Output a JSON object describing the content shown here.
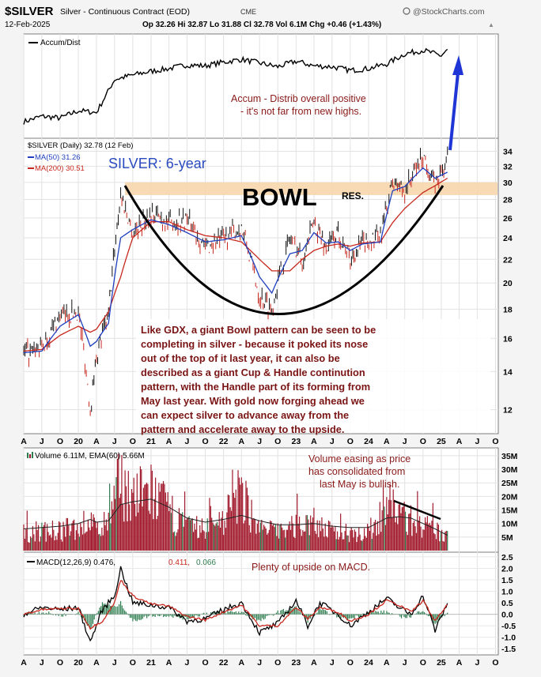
{
  "header": {
    "symbol": "$SILVER",
    "description": "Silver - Continuous Contract (EOD)",
    "exchange": "CME",
    "brand": "@StockCharts.com",
    "date": "12-Feb-2025",
    "quote": "Op 32.26  Hi 32.87  Lo 31.88  Cl 32.78  Vol 6.1M  Chg +0.46 (+1.43%)",
    "quote_arrow": "▲"
  },
  "x_ticks": [
    "A",
    "J",
    "O",
    "20",
    "A",
    "J",
    "O",
    "21",
    "A",
    "J",
    "O",
    "22",
    "A",
    "J",
    "O",
    "23",
    "A",
    "J",
    "O",
    "24",
    "A",
    "J",
    "O",
    "25",
    "A",
    "J",
    "O"
  ],
  "chart_data": [
    {
      "type": "line",
      "panel": "accum-dist",
      "legend": "Accum/Dist",
      "annotation": [
        "Accum - Distrib overall positive",
        "- it's not far from new highs."
      ],
      "x": [
        "2019-04",
        "2019-07",
        "2019-10",
        "2020-01",
        "2020-04",
        "2020-07",
        "2020-10",
        "2021-01",
        "2021-04",
        "2021-07",
        "2021-10",
        "2022-01",
        "2022-04",
        "2022-07",
        "2022-10",
        "2023-01",
        "2023-04",
        "2023-07",
        "2023-10",
        "2024-01",
        "2024-04",
        "2024-07",
        "2024-10",
        "2025-01",
        "2025-02"
      ],
      "values": [
        12,
        18,
        16,
        24,
        22,
        58,
        63,
        67,
        70,
        74,
        73,
        77,
        80,
        76,
        72,
        78,
        73,
        72,
        68,
        70,
        75,
        86,
        90,
        84,
        91
      ],
      "y_unit": "relative (0-100, no scale shown)",
      "line_color": "#000000"
    },
    {
      "type": "line",
      "panel": "price",
      "legend_symbol": "$SILVER (Daily) 32.78 (12 Feb)",
      "legend_ma50": "MA(50) 31.26",
      "legend_ma200": "MA(200) 30.51",
      "title": "SILVER: 6-year",
      "y_axis": "log",
      "yticks": [
        12,
        14,
        16,
        18,
        20,
        22,
        24,
        26,
        28,
        30,
        32,
        34
      ],
      "ylim": [
        11,
        35.5
      ],
      "x": [
        "2019-04",
        "2019-07",
        "2019-10",
        "2020-01",
        "2020-03",
        "2020-04",
        "2020-06",
        "2020-08",
        "2020-10",
        "2021-01",
        "2021-04",
        "2021-07",
        "2021-10",
        "2022-01",
        "2022-04",
        "2022-07",
        "2022-09",
        "2022-12",
        "2023-02",
        "2023-04",
        "2023-06",
        "2023-08",
        "2023-10",
        "2023-12",
        "2024-03",
        "2024-05",
        "2024-07",
        "2024-10",
        "2024-12",
        "2025-02"
      ],
      "series": [
        {
          "name": "$SILVER",
          "color": "#000000",
          "values": [
            15.0,
            15.3,
            17.5,
            17.8,
            12.0,
            15.0,
            17.5,
            28.5,
            24.5,
            26.5,
            25.5,
            26.0,
            23.0,
            24.0,
            25.0,
            19.0,
            18.0,
            24.0,
            22.0,
            25.5,
            23.0,
            24.5,
            22.0,
            23.5,
            24.0,
            30.0,
            29.0,
            33.5,
            29.5,
            32.78
          ]
        },
        {
          "name": "MA(50)",
          "color": "#1f3fbf",
          "values": [
            15.1,
            15.2,
            16.8,
            17.6,
            15.5,
            15.8,
            17.0,
            24.0,
            24.8,
            25.8,
            25.3,
            24.5,
            23.6,
            23.8,
            24.2,
            20.5,
            19.2,
            22.5,
            22.8,
            24.5,
            23.5,
            23.6,
            22.8,
            23.4,
            23.6,
            29.0,
            29.5,
            31.8,
            30.5,
            31.26
          ]
        },
        {
          "name": "MA(200)",
          "color": "#c8281e",
          "values": [
            15.2,
            15.3,
            16.2,
            16.8,
            16.4,
            16.6,
            17.8,
            20.5,
            24.0,
            25.6,
            25.6,
            24.8,
            24.2,
            24.0,
            23.6,
            22.0,
            21.0,
            21.0,
            22.0,
            22.8,
            23.2,
            23.4,
            23.2,
            23.5,
            23.6,
            25.5,
            27.0,
            28.8,
            29.6,
            30.51
          ]
        }
      ],
      "resistance_zone": [
        28.5,
        30.0
      ],
      "zone_color": "#f7d7ad",
      "bowl_label": "BOWL",
      "res_label": "RES.",
      "annotation": [
        "Like GDX, a giant Bowl pattern can be seen to be",
        "completing in silver - because it poked its nose",
        "out of the top of it last year, it can also be",
        "described as a giant Cup & Handle continution",
        "pattern, with the Handle part of its forming from",
        "May last year. With gold now forging ahead we",
        "can expect silver to advance away from the",
        "pattern and accelerate away to the upside."
      ]
    },
    {
      "type": "bar",
      "panel": "volume",
      "legend": "Volume 6.11M, EMA(60) 5.66M",
      "yticks": [
        "5M",
        "10M",
        "15M",
        "20M",
        "25M",
        "30M",
        "35M"
      ],
      "ylim": [
        0,
        37
      ],
      "x": [
        "2019-04",
        "2019-07",
        "2019-10",
        "2020-01",
        "2020-03",
        "2020-04",
        "2020-06",
        "2020-08",
        "2020-10",
        "2021-01",
        "2021-04",
        "2021-07",
        "2021-10",
        "2022-01",
        "2022-04",
        "2022-07",
        "2022-10",
        "2023-01",
        "2023-04",
        "2023-07",
        "2023-10",
        "2024-01",
        "2024-04",
        "2024-06",
        "2024-08",
        "2024-10",
        "2024-12",
        "2025-02"
      ],
      "values": [
        8,
        9,
        9,
        11,
        14,
        9,
        13,
        33,
        24,
        27,
        18,
        11,
        10,
        15,
        26,
        10,
        9,
        11,
        14,
        8,
        9,
        8,
        22,
        18,
        14,
        11,
        9,
        6.11
      ],
      "ema60": [
        8,
        8.5,
        9,
        10,
        11.5,
        10.5,
        11,
        17,
        18,
        19,
        16,
        12,
        10.5,
        11.5,
        13,
        11,
        9.5,
        9.5,
        10,
        9,
        8.5,
        8.5,
        12,
        12.5,
        12,
        10,
        8,
        5.66
      ],
      "bar_color": "#a0182a",
      "ema_color": "#222222",
      "annotation": [
        "Volume easing as price",
        "has consolidated from",
        "last May is bullish."
      ]
    },
    {
      "type": "line",
      "panel": "macd",
      "legend_main": "MACD(12,26,9) 0.476,",
      "legend_signal": "0.411,",
      "legend_hist": "0.066",
      "yticks": [
        "-1.5",
        "-1.0",
        "-0.5",
        "0.0",
        "0.5",
        "1.0",
        "1.5",
        "2.0",
        "2.5"
      ],
      "ylim": [
        -1.7,
        2.6
      ],
      "x": [
        "2019-04",
        "2019-07",
        "2019-10",
        "2020-01",
        "2020-03",
        "2020-05",
        "2020-07",
        "2020-08",
        "2020-10",
        "2021-01",
        "2021-04",
        "2021-07",
        "2021-10",
        "2022-01",
        "2022-04",
        "2022-07",
        "2022-10",
        "2023-01",
        "2023-03",
        "2023-05",
        "2023-08",
        "2023-10",
        "2024-01",
        "2024-04",
        "2024-06",
        "2024-08",
        "2024-10",
        "2024-12",
        "2025-02"
      ],
      "series": [
        {
          "name": "MACD",
          "color": "#000000",
          "values": [
            0.0,
            0.3,
            0.2,
            0.3,
            -1.2,
            0.2,
            0.8,
            2.0,
            0.5,
            0.4,
            0.3,
            -0.3,
            -0.2,
            0.2,
            0.5,
            -0.8,
            -0.4,
            0.6,
            -0.5,
            0.5,
            0.0,
            -0.5,
            0.1,
            0.7,
            0.3,
            0.0,
            0.8,
            -0.7,
            0.476
          ]
        },
        {
          "name": "Signal",
          "color": "#c8281e",
          "values": [
            0.0,
            0.2,
            0.25,
            0.25,
            -0.6,
            -0.3,
            0.5,
            1.5,
            0.8,
            0.45,
            0.35,
            -0.1,
            -0.25,
            0.1,
            0.4,
            -0.5,
            -0.5,
            0.3,
            -0.2,
            0.3,
            0.1,
            -0.3,
            0.0,
            0.6,
            0.4,
            0.1,
            0.6,
            -0.3,
            0.411
          ]
        }
      ],
      "histogram": [
        0.0,
        0.1,
        -0.05,
        0.05,
        -0.6,
        0.5,
        0.3,
        0.5,
        -0.3,
        -0.05,
        -0.05,
        -0.2,
        0.05,
        0.1,
        0.1,
        -0.3,
        0.1,
        0.3,
        -0.3,
        0.2,
        -0.1,
        -0.2,
        0.1,
        0.1,
        -0.1,
        -0.1,
        0.2,
        -0.4,
        0.066
      ],
      "hist_color": "#2e7d4f",
      "annotation": "Plenty of upside on MACD."
    }
  ]
}
